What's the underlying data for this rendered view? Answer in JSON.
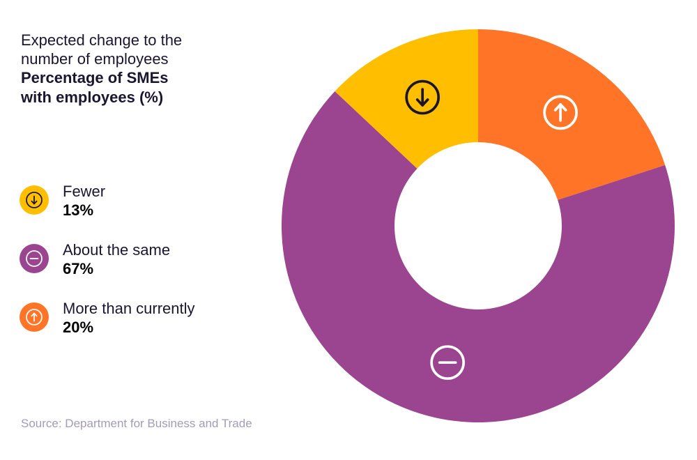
{
  "title": {
    "line1": "Expected change to the",
    "line2": "number of employees",
    "subtitle1": "Percentage of SMEs",
    "subtitle2": "with employees (%)"
  },
  "source": "Source: Department for Business and Trade",
  "chart_data": {
    "type": "pie",
    "variant": "donut",
    "title": "Expected change to the number of employees",
    "subtitle": "Percentage of SMEs with employees (%)",
    "legend_position": "left",
    "slices": [
      {
        "label": "More than currently",
        "value": 20,
        "display": "20%",
        "color": "#ff7426",
        "icon": "arrow-up-circle-icon",
        "icon_color": "#ffffff"
      },
      {
        "label": "About the same",
        "value": 67,
        "display": "67%",
        "color": "#9b448f",
        "icon": "minus-circle-icon",
        "icon_color": "#ffffff"
      },
      {
        "label": "Fewer",
        "value": 13,
        "display": "13%",
        "color": "#ffbe00",
        "icon": "arrow-down-circle-icon",
        "icon_color": "#1b1530"
      }
    ],
    "legend": [
      {
        "label": "Fewer",
        "display": "13%",
        "color": "#ffbe00",
        "icon": "arrow-down-circle-icon",
        "icon_color": "#1b1530"
      },
      {
        "label": "About the same",
        "display": "67%",
        "color": "#9b448f",
        "icon": "minus-circle-icon",
        "icon_color": "#ffffff"
      },
      {
        "label": "More than currently",
        "display": "20%",
        "color": "#ff7426",
        "icon": "arrow-up-circle-icon",
        "icon_color": "#ffffff"
      }
    ]
  }
}
